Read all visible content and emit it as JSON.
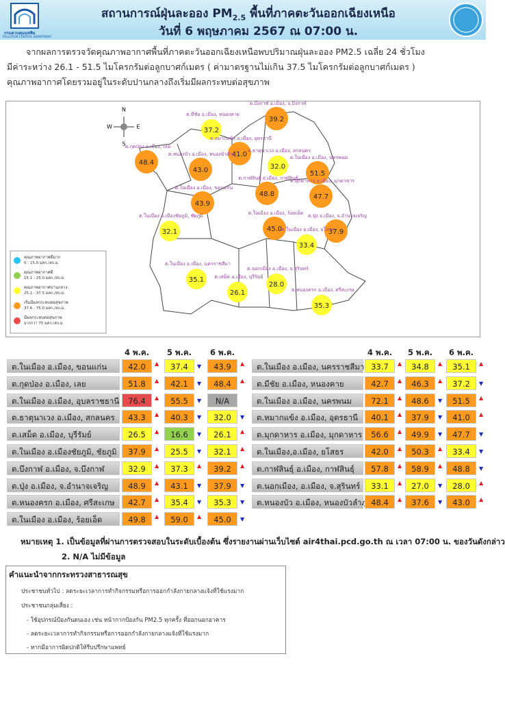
{
  "header": {
    "title_parts": [
      "สถานการณ์ฝุ่นละออง PM",
      "2.5",
      " พื้นที่ภาคตะวันออกเฉียงเหนือ"
    ],
    "date": "วันที่ 6 พฤษภาคม 2567 ณ 07:00 น.",
    "logo_th": "กรมควบคุมมลพิษ",
    "logo_en": "POLLUTION CONTROL DEPARTMENT"
  },
  "intro": [
    "จากผลการตรวจวัดคุณภาพอากาศพื้นที่ภาคตะวันออกเฉียงเหนือพบปริมาณฝุ่นละออง PM2.5 เฉลี่ย 24 ชั่วโมง",
    "มีค่าระหว่าง 26.1 - 51.5 ไมโครกรัมต่อลูกบาศก์เมตร ( ค่ามาตรฐานไม่เกิน 37.5 ไมโครกรัมต่อลูกบาศก์เมตร )",
    "คุณภาพอากาศโดยรวมอยู่ในระดับปานกลางถึงเริ่มมีผลกระทบต่อสุขภาพ"
  ],
  "map": {
    "compass": [
      "N",
      "E",
      "S",
      "W"
    ],
    "legend": [
      {
        "label": "คุณภาพอากาศดีมาก",
        "range": "0 - 15.0 มคก./ลบ.ม.",
        "color": "#29c5f6"
      },
      {
        "label": "คุณภาพอากาศดี",
        "range": "15.1 - 25.0 มคก./ลบ.ม.",
        "color": "#92d050"
      },
      {
        "label": "คุณภาพอากาศปานกลาง",
        "range": "25.1 - 37.5 มคก./ลบ.ม.",
        "color": "#ffff33"
      },
      {
        "label": "เริ่มมีผลกระทบต่อสุขภาพ",
        "range": "37.6 - 75.0 มคก./ลบ.ม.",
        "color": "#ff9a1f"
      },
      {
        "label": "มีผลกระทบต่อสุขภาพ",
        "range": "มากกว่า 75 มคก./ลบ.ม.",
        "color": "#e84b4b"
      }
    ],
    "markers": [
      {
        "label": "ต.มีชัย อ.เมือง, หนองคาย",
        "value": "37.2",
        "level": 2
      },
      {
        "label": "ต.บึงกาฬ อ.เมือง, จ.บึงกาฬ",
        "value": "39.2",
        "level": 3
      },
      {
        "label": "ต.กุดป่อง อ.เมือง, เลย",
        "value": "48.4",
        "level": 3
      },
      {
        "label": "ต.หมากแข้ง อ.เมือง, อุดรธานี",
        "value": "41.0",
        "level": 3
      },
      {
        "label": "ต.หนองบัว อ.เมือง, หนองบัวลำภู",
        "value": "43.0",
        "level": 3
      },
      {
        "label": "ต.ธาตุนาเวง อ.เมือง, สกลนคร",
        "value": "32.0",
        "level": 2
      },
      {
        "label": "ต.ในเมือง อ.เมือง, นครพนม",
        "value": "51.5",
        "level": 3
      },
      {
        "label": "ต.กาฬสินธุ์ อ.เมือง, กาฬสินธุ์",
        "value": "48.8",
        "level": 3
      },
      {
        "label": "ต.มุกดาหาร อ.เมือง, มุกดาหาร",
        "value": "47.7",
        "level": 3
      },
      {
        "label": "ต.ในเมือง อ.เมือง, ขอนแก่น",
        "value": "43.9",
        "level": 3
      },
      {
        "label": "ต.ในเมือง อ.เมืองชัยภูมิ, ชัยภูมิ",
        "value": "32.1",
        "level": 2
      },
      {
        "label": "ต.ในเมือง อ.เมือง, ร้อยเอ็ด",
        "value": "45.0",
        "level": 3
      },
      {
        "label": "ต.ปุ่ง อ.เมือง, จ.อำนาจเจริญ",
        "value": "37.9",
        "level": 3
      },
      {
        "label": "ต.ในเมือง อ.เมือง, ยโสธร",
        "value": "33.4",
        "level": 2
      },
      {
        "label": "ต.ในเมือง อ.เมือง, นครราชสีมา",
        "value": "35.1",
        "level": 2
      },
      {
        "label": "ต.เสม็ด อ.เมือง, บุรีรัมย์",
        "value": "26.1",
        "level": 2
      },
      {
        "label": "ต.นอกเมือง อ.เมือง, จ.สุรินทร์",
        "value": "28.0",
        "level": 2
      },
      {
        "label": "ต.หนองครก อ.เมือง, ศรีสะเกษ",
        "value": "35.3",
        "level": 2
      }
    ]
  },
  "table": {
    "days": [
      "4 พ.ค.",
      "5 พ.ค.",
      "6 พ.ค."
    ],
    "left": [
      {
        "name": "ต.ในเมือง อ.เมือง, ขอนแก่น",
        "values": [
          "42.0",
          "37.4",
          "43.9"
        ],
        "levels": [
          3,
          2,
          3
        ],
        "trends": [
          "up",
          "down",
          "up"
        ]
      },
      {
        "name": "ต.กุดป่อง อ.เมือง, เลย",
        "values": [
          "51.8",
          "42.1",
          "48.4"
        ],
        "levels": [
          3,
          3,
          3
        ],
        "trends": [
          "up",
          "down",
          "up"
        ]
      },
      {
        "name": "ต.ในเมือง อ.เมือง, อุบลราชธานี",
        "values": [
          "76.4",
          "55.5",
          "N/A"
        ],
        "levels": [
          4,
          3,
          null
        ],
        "trends": [
          "up",
          "down",
          null
        ]
      },
      {
        "name": "ต.ธาตุนาเวง อ.เมือง, สกลนคร",
        "values": [
          "43.3",
          "40.3",
          "32.0"
        ],
        "levels": [
          3,
          3,
          2
        ],
        "trends": [
          "up",
          "down",
          "down"
        ]
      },
      {
        "name": "ต.เสม็ด อ.เมือง, บุรีรัมย์",
        "values": [
          "26.5",
          "16.6",
          "26.1"
        ],
        "levels": [
          2,
          1,
          2
        ],
        "trends": [
          "up",
          "down",
          "up"
        ]
      },
      {
        "name": "ต.ในเมือง อ.เมืองชัยภูมิ, ชัยภูมิ",
        "values": [
          "37.9",
          "25.5",
          "32.1"
        ],
        "levels": [
          3,
          2,
          2
        ],
        "trends": [
          "up",
          "down",
          "up"
        ]
      },
      {
        "name": "ต.บึงกาฬ อ.เมือง, จ.บึงกาฬ",
        "values": [
          "32.9",
          "37.3",
          "39.2"
        ],
        "levels": [
          2,
          2,
          3
        ],
        "trends": [
          "up",
          "up",
          "up"
        ]
      },
      {
        "name": "ต.ปุ่ง อ.เมือง, จ.อำนาจเจริญ",
        "values": [
          "48.9",
          "43.1",
          "37.9"
        ],
        "levels": [
          3,
          3,
          3
        ],
        "trends": [
          "up",
          "down",
          "down"
        ]
      },
      {
        "name": "ต.หนองครก อ.เมือง, ศรีสะเกษ",
        "values": [
          "42.7",
          "35.4",
          "35.3"
        ],
        "levels": [
          3,
          2,
          2
        ],
        "trends": [
          "up",
          "down",
          "down"
        ]
      },
      {
        "name": "ต.ในเมือง อ.เมือง, ร้อยเอ็ด",
        "values": [
          "49.8",
          "59.0",
          "45.0"
        ],
        "levels": [
          3,
          3,
          3
        ],
        "trends": [
          "up",
          "up",
          "down"
        ]
      }
    ],
    "right": [
      {
        "name": "ต.ในเมือง อ.เมือง, นครราชสีมา",
        "values": [
          "33.7",
          "34.8",
          "35.1"
        ],
        "levels": [
          2,
          2,
          2
        ],
        "trends": [
          "up",
          "up",
          "up"
        ]
      },
      {
        "name": "ต.มีชัย อ.เมือง, หนองคาย",
        "values": [
          "42.7",
          "46.3",
          "37.2"
        ],
        "levels": [
          3,
          3,
          2
        ],
        "trends": [
          "up",
          "up",
          "down"
        ]
      },
      {
        "name": "ต.ในเมือง อ.เมือง, นครพนม",
        "values": [
          "72.1",
          "48.6",
          "51.5"
        ],
        "levels": [
          3,
          3,
          3
        ],
        "trends": [
          "up",
          "down",
          "up"
        ]
      },
      {
        "name": "ต.หมากแข้ง อ.เมือง, อุดรธานี",
        "values": [
          "40.1",
          "37.9",
          "41.0"
        ],
        "levels": [
          3,
          3,
          3
        ],
        "trends": [
          "up",
          "down",
          "up"
        ]
      },
      {
        "name": "ต.มุกดาหาร อ.เมือง, มุกดาหาร",
        "values": [
          "56.6",
          "49.9",
          "47.7"
        ],
        "levels": [
          3,
          3,
          3
        ],
        "trends": [
          "up",
          "down",
          "down"
        ]
      },
      {
        "name": "ต.ในเมือง,อ.เมือง, ยโสธร",
        "values": [
          "42.0",
          "50.3",
          "33.4"
        ],
        "levels": [
          3,
          3,
          2
        ],
        "trends": [
          "up",
          "up",
          "down"
        ]
      },
      {
        "name": "ต.กาฬสินธุ์ อ.เมือง, กาฬสินธุ์",
        "values": [
          "57.8",
          "58.9",
          "48.8"
        ],
        "levels": [
          3,
          3,
          3
        ],
        "trends": [
          "up",
          "up",
          "down"
        ]
      },
      {
        "name": "ต.นอกเมือง, อ.เมือง, จ.สุรินทร์",
        "values": [
          "33.1",
          "27.0",
          "28.0"
        ],
        "levels": [
          2,
          2,
          2
        ],
        "trends": [
          "up",
          "down",
          "up"
        ]
      },
      {
        "name": "ต.หนองบัว อ.เมือง, หนองบัวลำภู",
        "values": [
          "48.4",
          "37.6",
          "43.0"
        ],
        "levels": [
          3,
          3,
          3
        ],
        "trends": [
          "up",
          "down",
          "up"
        ]
      }
    ]
  },
  "notes": [
    "หมายเหตุ 1. เป็นข้อมูลที่ผ่านการตรวจสอบในระดับเบื้องต้น ซึ่งรายงานผ่านเว็บไซต์ air4thai.pcd.go.th ณ เวลา 07:00 น. ของวันดังกล่าว",
    "2. N/A ไม่มีข้อมูล"
  ],
  "advice": {
    "title": "คำแนะนำจากกระทรวงสาธารณสุข",
    "lines": [
      "ประชาชนทั่วไป : ลดระยะเวลาการทำกิจกรรมหรือการออกกำลังกายกลางแจ้งที่ใช้แรงมาก",
      "ประชาชนกลุ่มเสี่ยง :",
      "- ใช้อุปกรณ์ป้องกันตนเอง เช่น หน้ากากป้องกัน PM2.5 ทุกครั้ง ที่ออกนอกอาคาร",
      "- ลดระยะเวลาการทำกิจกรรมหรือการออกกำลังกายกลางแจ้งที่ใช้แรงมาก",
      "- หากมีอาการผิดปกติให้รีบปรึกษาแพทย์"
    ]
  }
}
